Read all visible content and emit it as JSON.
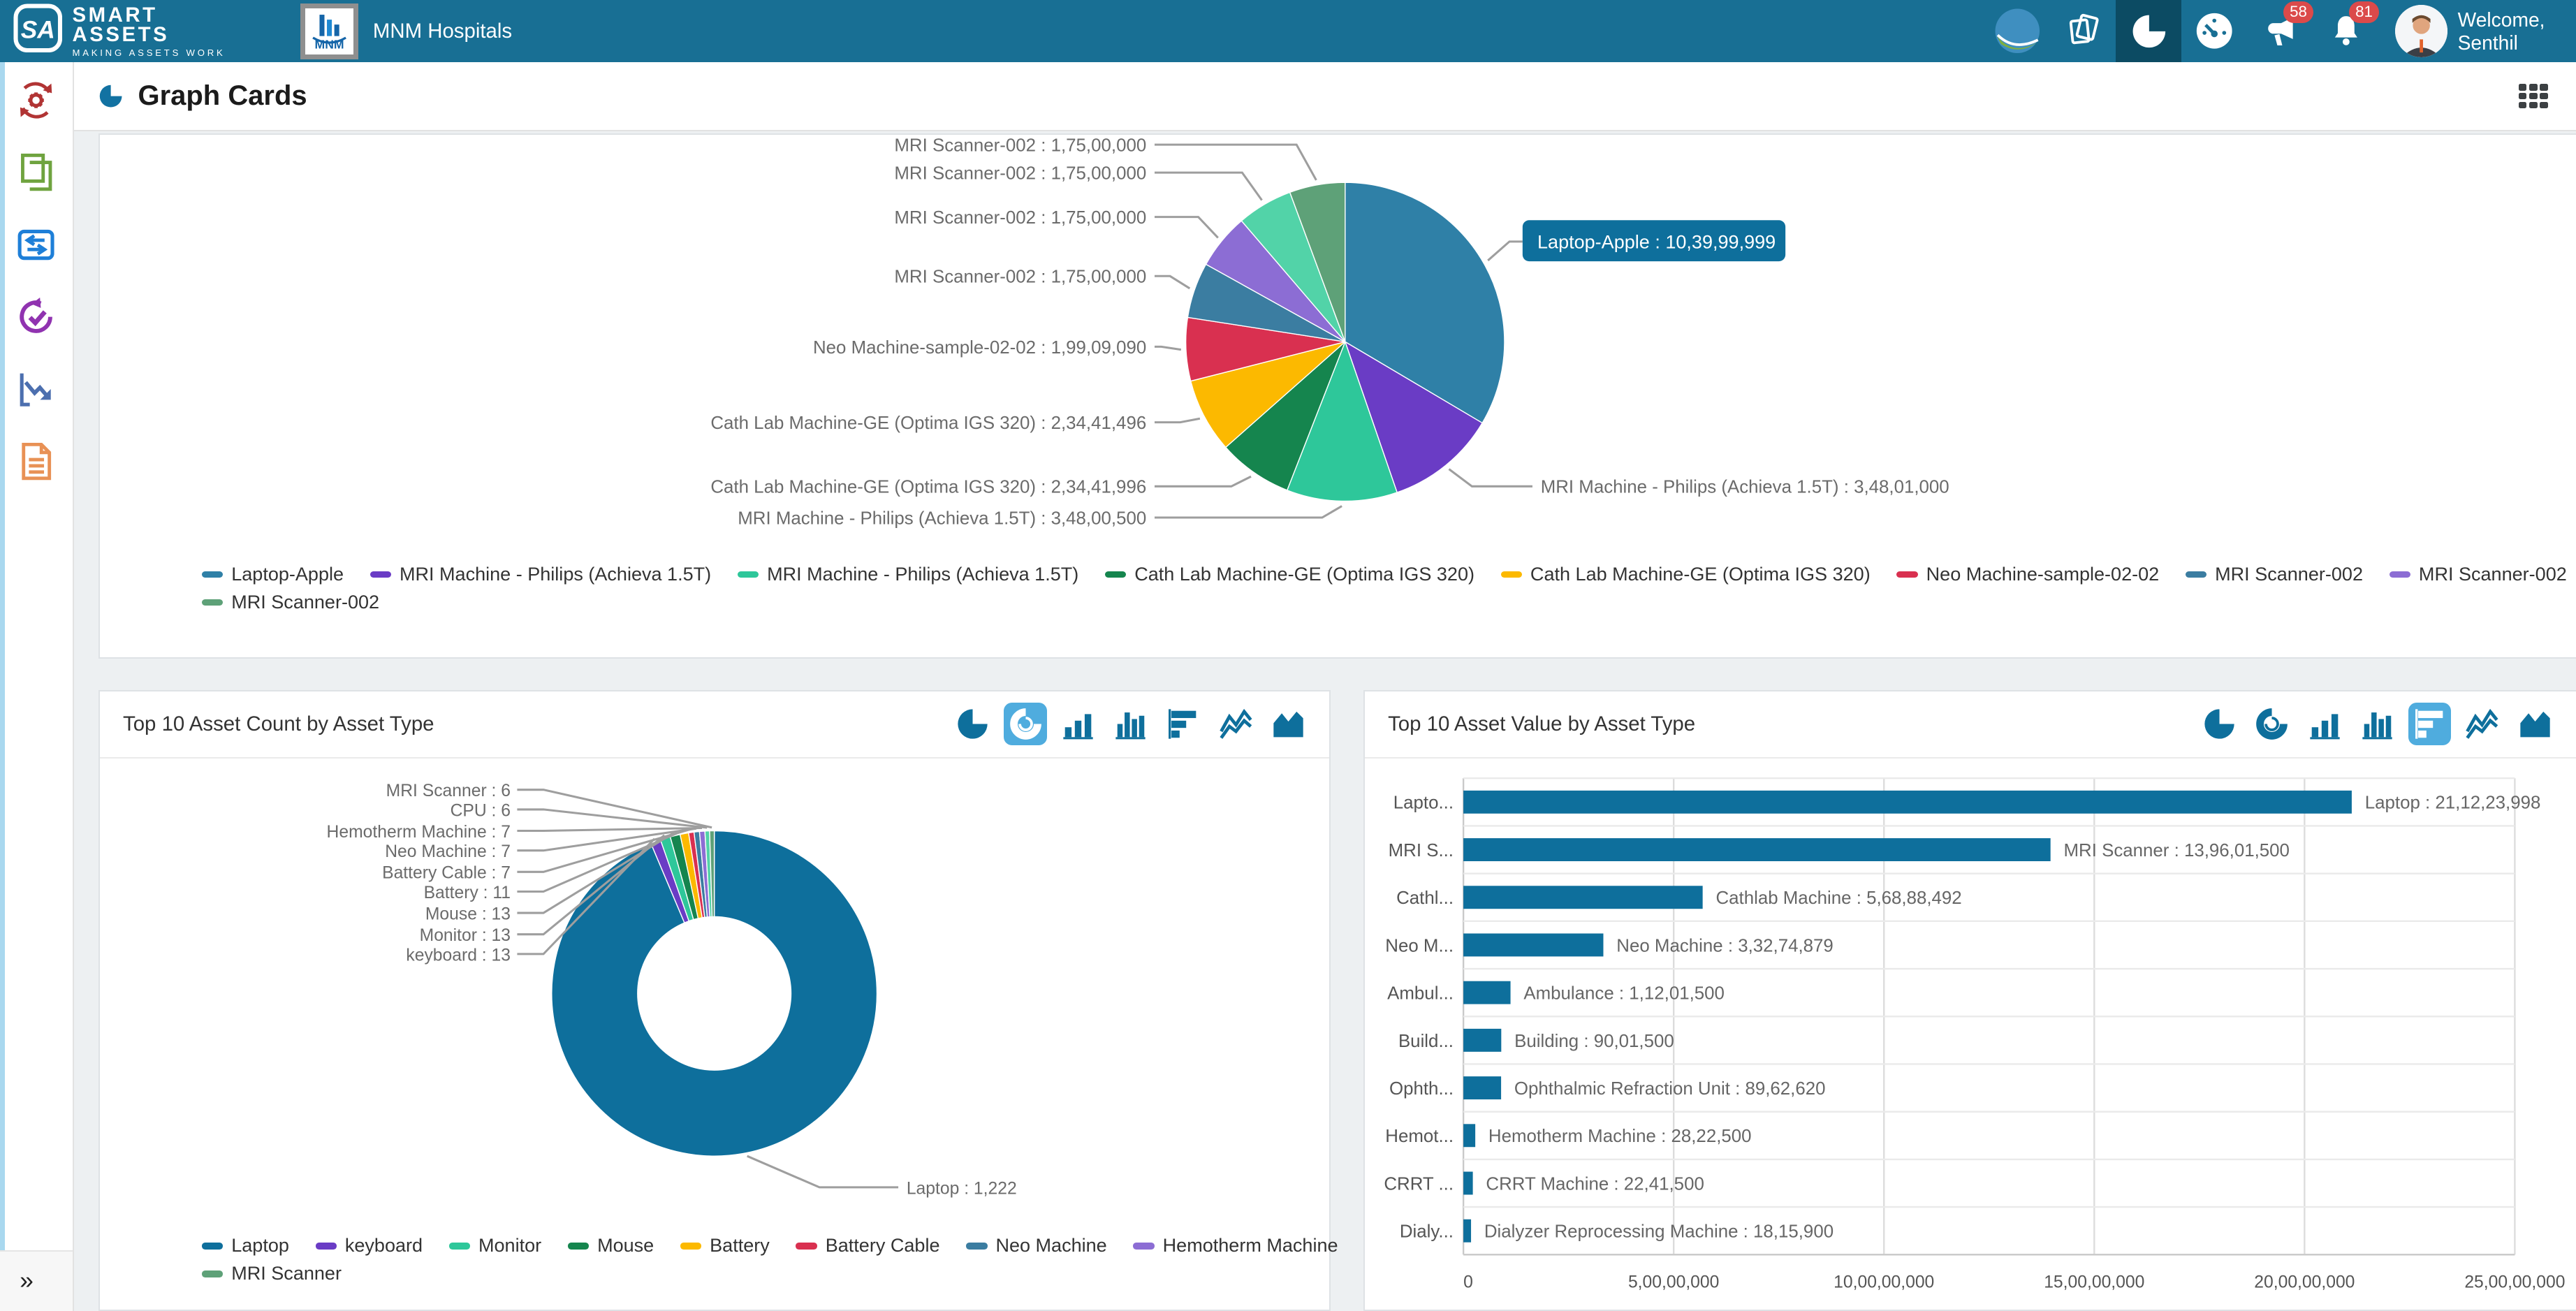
{
  "theme": {
    "header_bg": "#186F94",
    "header_active_bg": "#0C4B63",
    "badge_bg": "#DB4A4A",
    "accent_blue": "#0E6F9C",
    "toolbar_active_bg": "#4FACDE",
    "leader_line": "#9E9E9E",
    "label_text": "#6B6B6B"
  },
  "header": {
    "brand": {
      "monogram": "SA",
      "title": "SMART ASSETS",
      "tagline": "MAKING ASSETS WORK"
    },
    "organization": {
      "short_name": "MNM",
      "name": "MNM Hospitals"
    },
    "actions": [
      {
        "icon": "company-globe-icon"
      },
      {
        "icon": "stacked-cards-icon"
      },
      {
        "icon": "pie-chart-icon",
        "active": true
      },
      {
        "icon": "dashboard-gauge-icon"
      },
      {
        "icon": "megaphone-icon",
        "badge": "58"
      },
      {
        "icon": "bell-icon",
        "badge": "81"
      }
    ],
    "welcome": "Welcome, Senthil"
  },
  "page": {
    "title": "Graph Cards"
  },
  "sidebar": {
    "items": [
      {
        "icon": "gear-sync-icon"
      },
      {
        "icon": "stacked-documents-icon"
      },
      {
        "icon": "transfer-arrows-icon"
      },
      {
        "icon": "audit-check-icon"
      },
      {
        "icon": "depreciation-trend-icon"
      },
      {
        "icon": "report-document-icon"
      }
    ],
    "expander": "»"
  },
  "chart_toolbar_icons": [
    "pie-chart",
    "donut-chart",
    "bar-chart",
    "column-chart",
    "horizontal-bar-chart",
    "line-chart",
    "area-chart"
  ],
  "chart_data": [
    {
      "type": "pie",
      "title": "",
      "legend_position": "bottom",
      "legend_rows": [
        [
          0,
          1,
          2,
          3,
          4,
          5,
          6,
          7,
          8
        ],
        [
          9
        ]
      ],
      "highlight_tooltip": {
        "slice": 0,
        "text": "Laptop-Apple : 10,39,99,999"
      },
      "slices": [
        {
          "label": "Laptop-Apple",
          "value": 103999999,
          "value_display": "10,39,99,999",
          "color": "#2F80A7"
        },
        {
          "label": "MRI Machine - Philips (Achieva 1.5T)",
          "value": 34801000,
          "value_display": "3,48,01,000",
          "color": "#6A3CC5"
        },
        {
          "label": "MRI Machine - Philips (Achieva 1.5T)",
          "value": 34800500,
          "value_display": "3,48,00,500",
          "color": "#2EC79A"
        },
        {
          "label": "Cath Lab Machine-GE (Optima IGS 320)",
          "value": 23441996,
          "value_display": "2,34,41,996",
          "color": "#15854E"
        },
        {
          "label": "Cath Lab Machine-GE (Optima IGS 320)",
          "value": 23441496,
          "value_display": "2,34,41,496",
          "color": "#FCB900"
        },
        {
          "label": "Neo Machine-sample-02-02",
          "value": 19909090,
          "value_display": "1,99,09,090",
          "color": "#D93050"
        },
        {
          "label": "MRI Scanner-002",
          "value": 17500000,
          "value_display": "1,75,00,000",
          "color": "#3B7DA1"
        },
        {
          "label": "MRI Scanner-002",
          "value": 17500000,
          "value_display": "1,75,00,000",
          "color": "#8C6DD4"
        },
        {
          "label": "MRI Scanner-002",
          "value": 17500000,
          "value_display": "1,75,00,000",
          "color": "#52D3A8"
        },
        {
          "label": "MRI Scanner-002",
          "value": 17500000,
          "value_display": "1,75,00,000",
          "color": "#5EA178"
        }
      ]
    },
    {
      "type": "donut",
      "title": "Top 10 Asset Count by Asset Type",
      "toolbar_active": "donut-chart",
      "legend_rows": [
        [
          0,
          1,
          2,
          3,
          4,
          5,
          6,
          7,
          8
        ],
        [
          9
        ]
      ],
      "callout": {
        "slice": 0,
        "text": "Laptop : 1,222"
      },
      "slices": [
        {
          "label": "Laptop",
          "value": 1222,
          "value_display": "1,222",
          "color": "#0E6F9C"
        },
        {
          "label": "keyboard",
          "value": 13,
          "value_display": "13",
          "color": "#6A3CC5"
        },
        {
          "label": "Monitor",
          "value": 13,
          "value_display": "13",
          "color": "#2EC79A"
        },
        {
          "label": "Mouse",
          "value": 13,
          "value_display": "13",
          "color": "#15854E"
        },
        {
          "label": "Battery",
          "value": 11,
          "value_display": "11",
          "color": "#FCB900"
        },
        {
          "label": "Battery Cable",
          "value": 7,
          "value_display": "7",
          "color": "#D93050"
        },
        {
          "label": "Neo Machine",
          "value": 7,
          "value_display": "7",
          "color": "#3B7DA1"
        },
        {
          "label": "Hemotherm Machine",
          "value": 7,
          "value_display": "7",
          "color": "#8C6DD4"
        },
        {
          "label": "CPU",
          "value": 6,
          "value_display": "6",
          "color": "#52D3A8"
        },
        {
          "label": "MRI Scanner",
          "value": 6,
          "value_display": "6",
          "color": "#5EA178"
        }
      ]
    },
    {
      "type": "bar-horizontal",
      "title": "Top 10 Asset Value by Asset Type",
      "toolbar_active": "horizontal-bar-chart",
      "bar_color": "#0E6F9C",
      "x_max": 250000000,
      "x_ticks": [
        "0",
        "5,00,00,000",
        "10,00,00,000",
        "15,00,00,000",
        "20,00,00,000",
        "25,00,00,000"
      ],
      "rows": [
        {
          "category_truncated": "Lapto...",
          "label": "Laptop : 21,12,23,998",
          "value": 211223998
        },
        {
          "category_truncated": "MRI S...",
          "label": "MRI Scanner : 13,96,01,500",
          "value": 139601500
        },
        {
          "category_truncated": "Cathl...",
          "label": "Cathlab Machine : 5,68,88,492",
          "value": 56888492
        },
        {
          "category_truncated": "Neo M...",
          "label": "Neo Machine : 3,32,74,879",
          "value": 33274879
        },
        {
          "category_truncated": "Ambul...",
          "label": "Ambulance : 1,12,01,500",
          "value": 11201500
        },
        {
          "category_truncated": "Build...",
          "label": "Building : 90,01,500",
          "value": 9001500
        },
        {
          "category_truncated": "Ophth...",
          "label": "Ophthalmic Refraction Unit : 89,62,620",
          "value": 8962620
        },
        {
          "category_truncated": "Hemot...",
          "label": "Hemotherm Machine : 28,22,500",
          "value": 2822500
        },
        {
          "category_truncated": "CRRT ...",
          "label": "CRRT Machine : 22,41,500",
          "value": 2241500
        },
        {
          "category_truncated": "Dialy...",
          "label": "Dialyzer Reprocessing Machine : 18,15,900",
          "value": 1815900
        }
      ]
    }
  ]
}
